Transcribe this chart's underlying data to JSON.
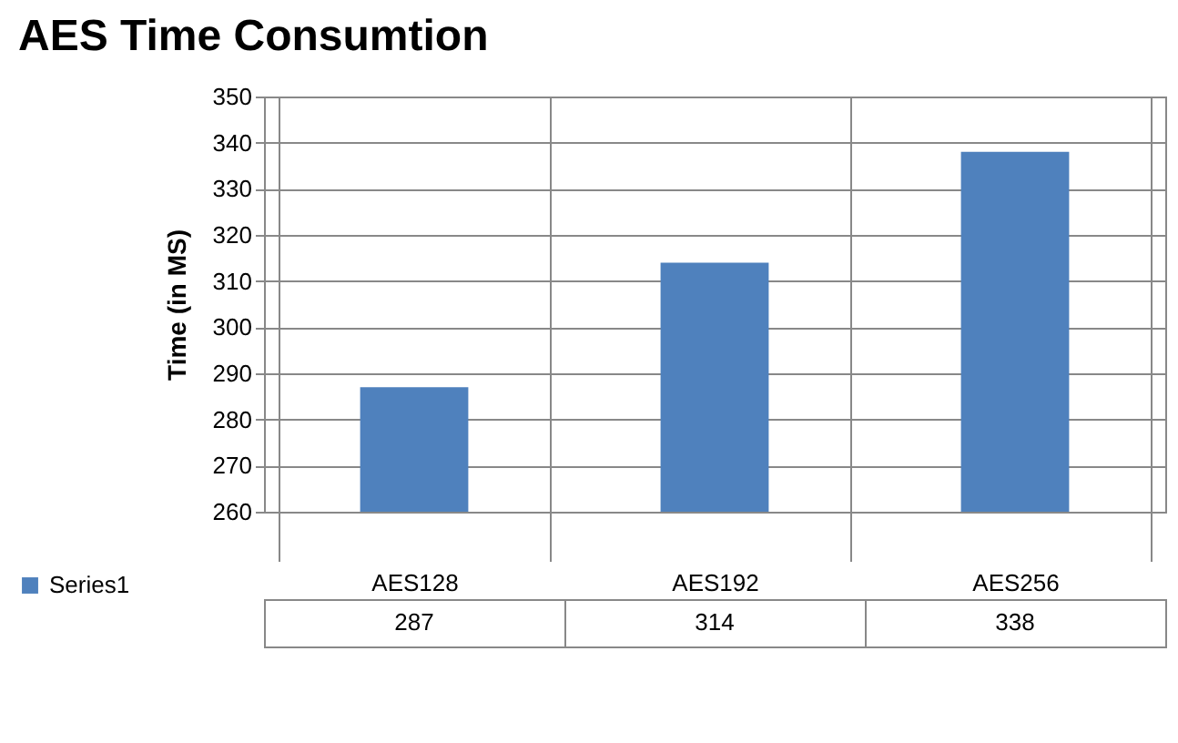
{
  "chart_data": {
    "type": "bar",
    "title": "AES Time Consumtion",
    "ylabel": "Time (in MS)",
    "categories": [
      "AES128",
      "AES192",
      "AES256"
    ],
    "series": [
      {
        "name": "Series1",
        "color": "#4f81bd",
        "values": [
          287,
          314,
          338
        ]
      }
    ],
    "ylim": [
      260,
      350
    ],
    "yticks": [
      260,
      270,
      280,
      290,
      300,
      310,
      320,
      330,
      340,
      350
    ],
    "grid": "y",
    "data_labels": true,
    "legend": "bottom"
  }
}
